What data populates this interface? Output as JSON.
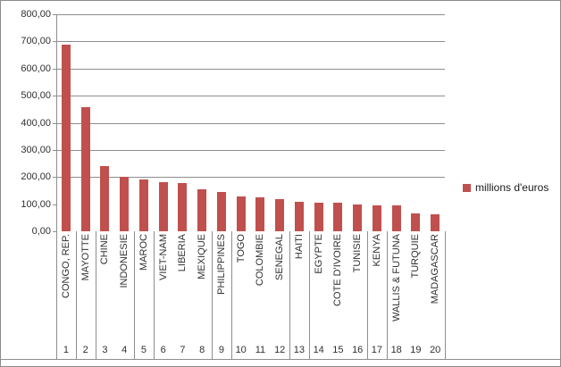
{
  "chart_data": {
    "type": "bar",
    "title": "",
    "xlabel": "",
    "ylabel": "",
    "ylim": [
      0,
      800
    ],
    "grid": true,
    "gridline_values": [
      200,
      300,
      400,
      500,
      600,
      700,
      800
    ],
    "ytick_values": [
      800,
      700,
      600,
      500,
      400,
      300,
      200,
      100,
      0
    ],
    "ytick_labels": [
      "800,00",
      "700,00",
      "600,00",
      "500,00",
      "400,00",
      "300,00",
      "200,00",
      "100,00",
      "0,00"
    ],
    "categories": [
      "CONGO, REP.",
      "MAYOTTE",
      "CHINE",
      "INDONESIE",
      "MAROC",
      "VIET-NAM",
      "LIBERIA",
      "MEXIQUE",
      "PHILIPPINES",
      "TOGO",
      "COLOMBIE",
      "SENEGAL",
      "HAITI",
      "EGYPTE",
      "COTE D'IVOIRE",
      "TUNISIE",
      "KENYA",
      "WALLIS & FUTUNA",
      "TURQUIE",
      "MADAGASCAR"
    ],
    "ranks": [
      "1",
      "2",
      "3",
      "4",
      "5",
      "6",
      "7",
      "8",
      "9",
      "10",
      "11",
      "12",
      "13",
      "14",
      "15",
      "16",
      "17",
      "18",
      "19",
      "20"
    ],
    "series": [
      {
        "name": "millions d'euros",
        "color": "#C0504D",
        "values": [
          688,
          458,
          240,
          200,
          191,
          182,
          177,
          155,
          145,
          128,
          125,
          119,
          110,
          106,
          104,
          99,
          95,
          94,
          66,
          64
        ]
      }
    ],
    "legend": {
      "position": "right",
      "label": "millions d'euros",
      "swatch_color": "#C0504D"
    }
  }
}
